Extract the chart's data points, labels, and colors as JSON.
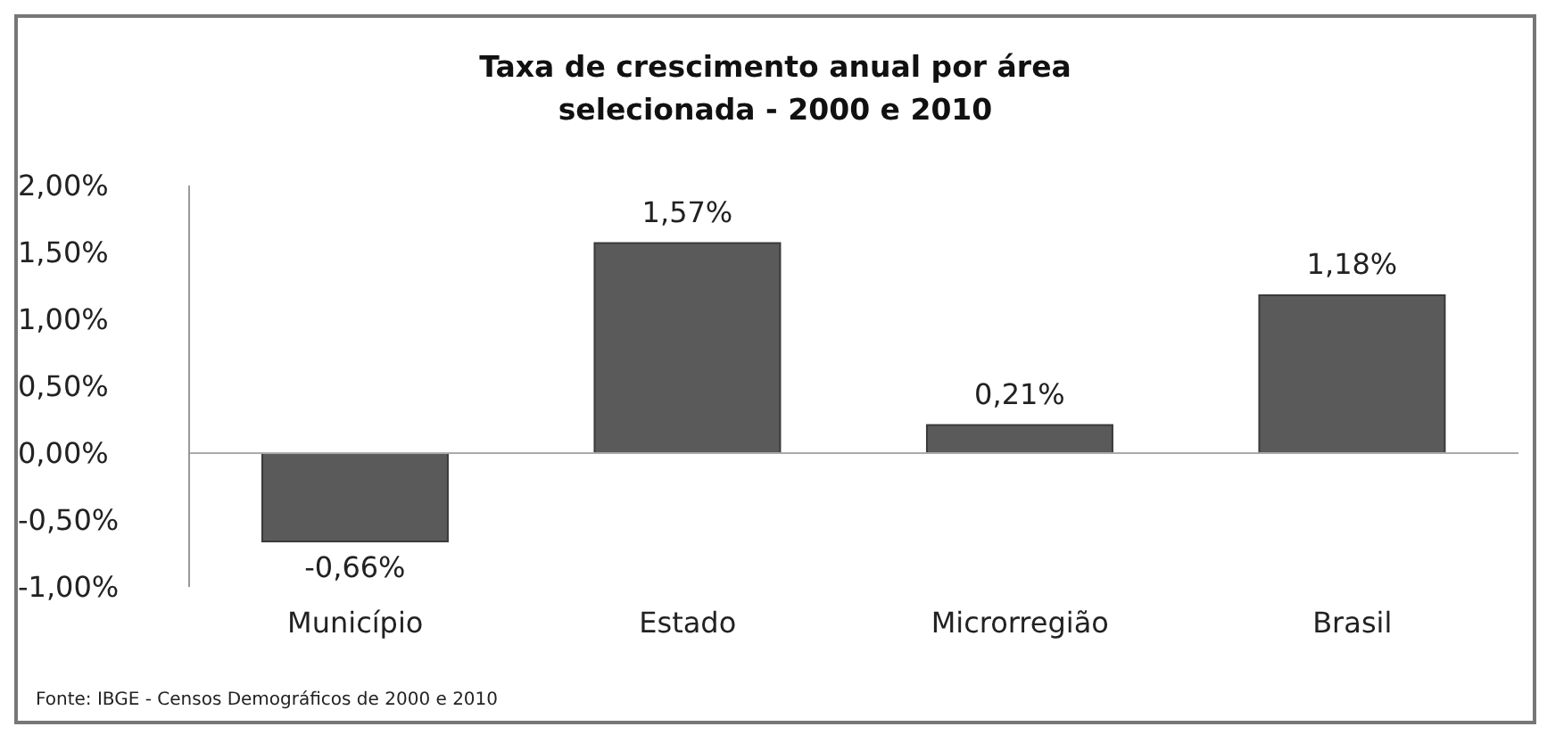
{
  "chart_data": {
    "type": "bar",
    "title": "Taxa de crescimento anual por área selecionada - 2000 e 2010",
    "categories": [
      "Município",
      "Estado",
      "Microrregião",
      "Brasil"
    ],
    "values": [
      -0.66,
      1.57,
      0.21,
      1.18
    ],
    "value_labels": [
      "-0,66%",
      "1,57%",
      "0,21%",
      "1,18%"
    ],
    "color": "#5a5a5a",
    "ylim": [
      -1,
      2
    ],
    "yticks": [
      {
        "value": -1,
        "label": "-1,00%"
      },
      {
        "value": -0.5,
        "label": "-0,50%"
      },
      {
        "value": 0,
        "label": "0,00%"
      },
      {
        "value": 0.5,
        "label": "0,50%"
      },
      {
        "value": 1,
        "label": "1,00%"
      },
      {
        "value": 1.5,
        "label": "1,50%"
      },
      {
        "value": 2,
        "label": "2,00%"
      }
    ],
    "annotations": [
      "Fonte: IBGE - Censos Demográficos de 2000 e 2010"
    ]
  }
}
